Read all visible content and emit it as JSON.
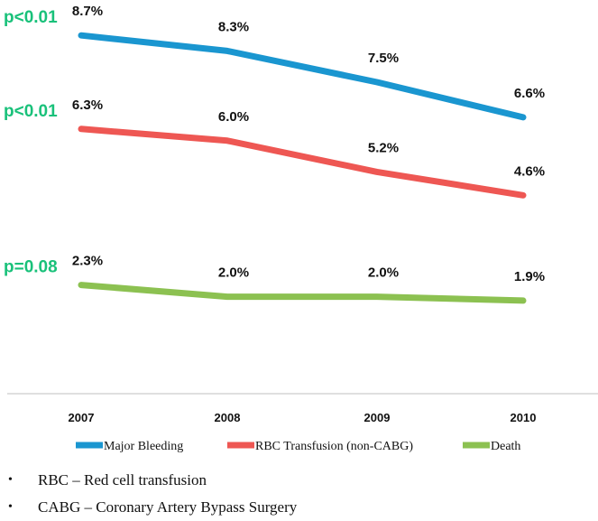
{
  "chart_data": {
    "type": "line",
    "categories": [
      "2007",
      "2008",
      "2009",
      "2010"
    ],
    "series": [
      {
        "name": "Major Bleeding",
        "values": [
          8.7,
          8.3,
          7.5,
          6.6
        ],
        "labels": [
          "8.7%",
          "8.3%",
          "7.5%",
          "6.6%"
        ],
        "color": "#1a96d0"
      },
      {
        "name": "RBC Transfusion (non-CABG)",
        "values": [
          6.3,
          6.0,
          5.2,
          4.6
        ],
        "labels": [
          "6.3%",
          "6.0%",
          "5.2%",
          "4.6%"
        ],
        "color": "#ee5753"
      },
      {
        "name": "Death",
        "values": [
          2.3,
          2.0,
          2.0,
          1.9
        ],
        "labels": [
          "2.3%",
          "2.0%",
          "2.0%",
          "1.9%"
        ],
        "color": "#8cc151"
      }
    ],
    "annotations": [
      {
        "text": "p<0.01",
        "series": "Major Bleeding"
      },
      {
        "text": "p<0.01",
        "series": "RBC Transfusion (non-CABG)"
      },
      {
        "text": "p=0.08",
        "series": "Death"
      }
    ],
    "annotation_color": "#19c17a",
    "legend_position": "bottom",
    "grid": false,
    "ylim": [
      0,
      10
    ],
    "title": "",
    "xlabel": "",
    "ylabel": ""
  },
  "footnotes": [
    "RBC – Red cell transfusion",
    "CABG – Coronary Artery  Bypass Surgery"
  ],
  "bullet_symbol": "•"
}
